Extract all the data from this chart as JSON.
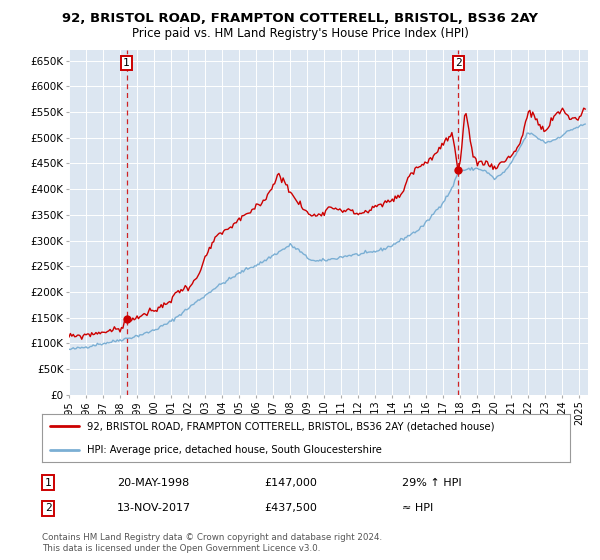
{
  "title_line1": "92, BRISTOL ROAD, FRAMPTON COTTERELL, BRISTOL, BS36 2AY",
  "title_line2": "Price paid vs. HM Land Registry's House Price Index (HPI)",
  "ylim": [
    0,
    670000
  ],
  "yticks": [
    0,
    50000,
    100000,
    150000,
    200000,
    250000,
    300000,
    350000,
    400000,
    450000,
    500000,
    550000,
    600000,
    650000
  ],
  "ytick_labels": [
    "£0",
    "£50K",
    "£100K",
    "£150K",
    "£200K",
    "£250K",
    "£300K",
    "£350K",
    "£400K",
    "£450K",
    "£500K",
    "£550K",
    "£600K",
    "£650K"
  ],
  "hpi_color": "#7bafd4",
  "price_color": "#cc0000",
  "bg_color": "#dce6f1",
  "grid_color": "#ffffff",
  "transaction1_x": 1998.38,
  "transaction1_y": 147000,
  "transaction2_x": 2017.87,
  "transaction2_y": 437500,
  "legend_label_red": "92, BRISTOL ROAD, FRAMPTON COTTERELL, BRISTOL, BS36 2AY (detached house)",
  "legend_label_blue": "HPI: Average price, detached house, South Gloucestershire",
  "annotation1_date": "20-MAY-1998",
  "annotation1_price": "£147,000",
  "annotation1_hpi": "29% ↑ HPI",
  "annotation2_date": "13-NOV-2017",
  "annotation2_price": "£437,500",
  "annotation2_hpi": "≈ HPI",
  "footer": "Contains HM Land Registry data © Crown copyright and database right 2024.\nThis data is licensed under the Open Government Licence v3.0.",
  "xmin": 1995.0,
  "xmax": 2025.5,
  "hpi_key_x": [
    1995.0,
    1995.5,
    1996.0,
    1996.5,
    1997.0,
    1997.5,
    1998.0,
    1998.5,
    1999.0,
    1999.5,
    2000.0,
    2000.5,
    2001.0,
    2001.5,
    2002.0,
    2002.5,
    2003.0,
    2003.5,
    2004.0,
    2004.5,
    2005.0,
    2005.5,
    2006.0,
    2006.5,
    2007.0,
    2007.5,
    2008.0,
    2008.5,
    2009.0,
    2009.5,
    2010.0,
    2010.5,
    2011.0,
    2011.5,
    2012.0,
    2012.5,
    2013.0,
    2013.5,
    2014.0,
    2014.5,
    2015.0,
    2015.5,
    2016.0,
    2016.5,
    2017.0,
    2017.5,
    2017.87,
    2018.0,
    2018.5,
    2019.0,
    2019.5,
    2020.0,
    2020.5,
    2021.0,
    2021.5,
    2022.0,
    2022.5,
    2023.0,
    2023.5,
    2024.0,
    2024.5,
    2025.3
  ],
  "hpi_key_y": [
    88000,
    90000,
    93000,
    97000,
    100000,
    103000,
    107000,
    110000,
    114000,
    119000,
    125000,
    133000,
    142000,
    155000,
    167000,
    180000,
    192000,
    205000,
    215000,
    225000,
    235000,
    245000,
    252000,
    260000,
    270000,
    280000,
    290000,
    280000,
    265000,
    258000,
    260000,
    263000,
    267000,
    270000,
    272000,
    274000,
    278000,
    283000,
    290000,
    300000,
    310000,
    320000,
    335000,
    355000,
    375000,
    400000,
    433000,
    435000,
    438000,
    440000,
    435000,
    420000,
    430000,
    450000,
    480000,
    510000,
    500000,
    490000,
    495000,
    505000,
    515000,
    525000
  ],
  "red_key_x": [
    1995.0,
    1995.5,
    1996.0,
    1996.5,
    1997.0,
    1997.5,
    1998.0,
    1998.38,
    1998.7,
    1999.0,
    1999.5,
    2000.0,
    2000.5,
    2001.0,
    2001.5,
    2002.0,
    2002.5,
    2003.0,
    2003.5,
    2004.0,
    2004.5,
    2005.0,
    2005.5,
    2006.0,
    2006.5,
    2007.0,
    2007.3,
    2007.7,
    2008.0,
    2008.5,
    2009.0,
    2009.5,
    2010.0,
    2010.5,
    2011.0,
    2011.5,
    2012.0,
    2012.5,
    2013.0,
    2013.5,
    2014.0,
    2014.5,
    2015.0,
    2015.5,
    2016.0,
    2016.5,
    2017.0,
    2017.5,
    2017.87,
    2018.0,
    2018.3,
    2018.7,
    2019.0,
    2019.5,
    2020.0,
    2020.5,
    2021.0,
    2021.5,
    2022.0,
    2022.3,
    2022.6,
    2023.0,
    2023.5,
    2024.0,
    2024.5,
    2025.0,
    2025.3
  ],
  "red_key_y": [
    113000,
    114000,
    117000,
    120000,
    123000,
    126000,
    130000,
    147000,
    150000,
    152000,
    158000,
    165000,
    175000,
    188000,
    205000,
    212000,
    225000,
    265000,
    300000,
    315000,
    325000,
    340000,
    350000,
    365000,
    380000,
    410000,
    430000,
    420000,
    395000,
    375000,
    355000,
    350000,
    360000,
    368000,
    363000,
    360000,
    355000,
    360000,
    368000,
    375000,
    382000,
    390000,
    430000,
    445000,
    455000,
    470000,
    490000,
    510000,
    437500,
    450000,
    560000,
    475000,
    455000,
    455000,
    445000,
    455000,
    470000,
    490000,
    555000,
    545000,
    530000,
    515000,
    545000,
    560000,
    540000,
    545000,
    560000
  ]
}
